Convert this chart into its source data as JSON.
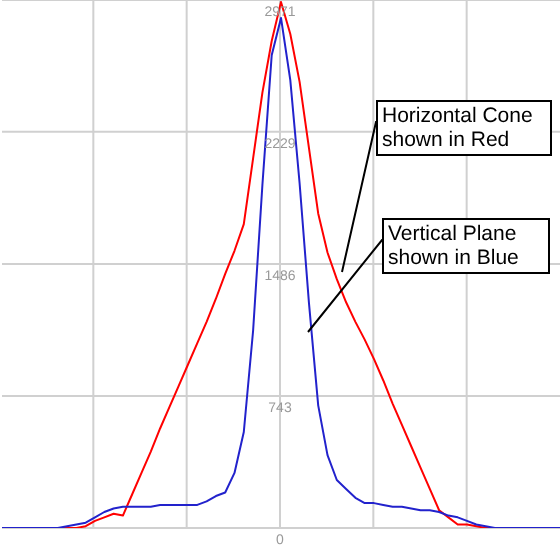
{
  "chart_data": {
    "type": "line",
    "categories": [
      null,
      null,
      null,
      null,
      null,
      null,
      null,
      null,
      null,
      null,
      null,
      null,
      null,
      null,
      null,
      null,
      null,
      null,
      null,
      null,
      null,
      null,
      null,
      null,
      null,
      null,
      null,
      null,
      null,
      null,
      null,
      null,
      null,
      null,
      null,
      null,
      null,
      null,
      null,
      null,
      null,
      null,
      null,
      null,
      null,
      null,
      null,
      null,
      null,
      null,
      null,
      null,
      null,
      null,
      null,
      null,
      null,
      null,
      null,
      null,
      null
    ],
    "ylim": [
      0,
      2971
    ],
    "yticks": [
      0,
      743,
      1486,
      2229,
      2971
    ],
    "grid": true,
    "series": [
      {
        "color": "#ff0000",
        "values": [
          null,
          null,
          null,
          null,
          null,
          0,
          0,
          0,
          0,
          10,
          40,
          60,
          80,
          70,
          190,
          310,
          430,
          560,
          680,
          800,
          920,
          1040,
          1160,
          1290,
          1430,
          1560,
          1710,
          2080,
          2450,
          2740,
          2960,
          2780,
          2510,
          2140,
          1770,
          1550,
          1400,
          1270,
          1160,
          1060,
          950,
          830,
          700,
          580,
          460,
          340,
          220,
          100,
          60,
          20,
          20,
          10,
          0,
          0,
          null,
          null,
          null,
          null,
          null,
          null,
          null
        ]
      },
      {
        "color": "#2222cc",
        "values": [
          0,
          0,
          0,
          0,
          0,
          0,
          0,
          10,
          20,
          30,
          60,
          90,
          110,
          120,
          120,
          120,
          120,
          130,
          130,
          130,
          130,
          130,
          150,
          180,
          200,
          310,
          540,
          1110,
          1930,
          2660,
          2870,
          2520,
          1940,
          1270,
          690,
          410,
          270,
          220,
          170,
          140,
          140,
          130,
          120,
          120,
          110,
          100,
          100,
          90,
          70,
          60,
          40,
          20,
          10,
          0,
          0,
          0,
          0,
          0,
          0,
          0,
          0
        ]
      }
    ],
    "annotations": [
      "Horizontal Cone shown in Red",
      "Vertical Plane shown in Blue"
    ]
  }
}
